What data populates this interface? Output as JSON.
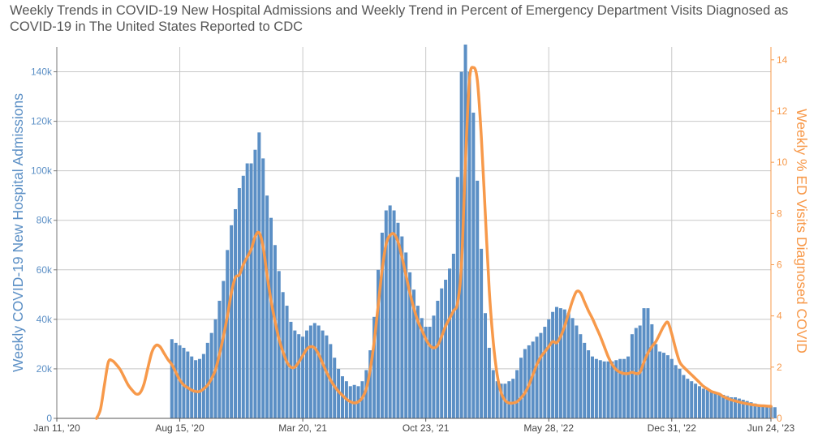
{
  "title": "Weekly Trends in COVID-19 New Hospital Admissions and Weekly Trend in Percent of Emergency Department Visits Diagnosed as COVID-19 in The United States Reported to CDC",
  "colors": {
    "bars": "#5b8fc5",
    "line": "#f7994a",
    "left_axis_text": "#5b8fc5",
    "right_axis_text": "#f7994a",
    "grid": "#c8c8c8",
    "text": "#444444"
  },
  "chart_data": {
    "type": "bar",
    "title": "Weekly Trends in COVID-19 New Hospital Admissions and Weekly Trend in Percent of Emergency Department Visits Diagnosed as COVID-19 in The United States Reported to CDC",
    "ylabel": "Weekly COVID-19 New Hospital Admissions",
    "y2label": "Weekly % ED Visits Diagnosed COVID",
    "xlim": [
      "2020-01-11",
      "2023-06-24"
    ],
    "ylim": [
      0,
      150000
    ],
    "y2lim": [
      0,
      14.5
    ],
    "grid": true,
    "x_ticks": [
      {
        "date": "2020-01-11",
        "label": "Jan 11, '20"
      },
      {
        "date": "2020-08-15",
        "label": "Aug 15, '20"
      },
      {
        "date": "2021-03-20",
        "label": "Mar 20, '21"
      },
      {
        "date": "2021-10-23",
        "label": "Oct 23, '21"
      },
      {
        "date": "2022-05-28",
        "label": "May 28, '22"
      },
      {
        "date": "2022-12-31",
        "label": "Dec 31, '22"
      },
      {
        "date": "2023-06-24",
        "label": "Jun 24, '23"
      }
    ],
    "y_ticks": [
      {
        "value": 0,
        "label": "0"
      },
      {
        "value": 20000,
        "label": "20k"
      },
      {
        "value": 40000,
        "label": "40k"
      },
      {
        "value": 60000,
        "label": "60k"
      },
      {
        "value": 80000,
        "label": "80k"
      },
      {
        "value": 100000,
        "label": "100k"
      },
      {
        "value": 120000,
        "label": "120k"
      },
      {
        "value": 140000,
        "label": "140k"
      }
    ],
    "y2_ticks": [
      {
        "value": 0,
        "label": "0"
      },
      {
        "value": 2,
        "label": "2"
      },
      {
        "value": 4,
        "label": "4"
      },
      {
        "value": 6,
        "label": "6"
      },
      {
        "value": 8,
        "label": "8"
      },
      {
        "value": 10,
        "label": "10"
      },
      {
        "value": 12,
        "label": "12"
      },
      {
        "value": 14,
        "label": "14"
      }
    ],
    "series": [
      {
        "name": "Weekly COVID-19 New Hospital Admissions",
        "axis": "left",
        "start_date": "2020-08-01",
        "values": [
          32000,
          30500,
          29500,
          28500,
          27000,
          25000,
          23500,
          24000,
          26000,
          30500,
          34500,
          40000,
          47500,
          55500,
          68000,
          78000,
          84500,
          93000,
          98000,
          103000,
          103000,
          108500,
          115500,
          105000,
          90000,
          81000,
          70000,
          59500,
          51000,
          45500,
          39000,
          35500,
          34000,
          33000,
          35500,
          37500,
          38500,
          37500,
          35500,
          33500,
          30000,
          24500,
          20000,
          17000,
          15000,
          13000,
          13500,
          13000,
          15000,
          19500,
          27500,
          41000,
          60000,
          75000,
          84000,
          86000,
          84000,
          79000,
          73500,
          67000,
          59000,
          52000,
          45500,
          40500,
          37000,
          37000,
          41500,
          47500,
          52500,
          56000,
          60500,
          66500,
          97500,
          140000,
          151000,
          140000,
          123500,
          96000,
          68500,
          42500,
          28500,
          19500,
          15000,
          14000,
          14000,
          15000,
          16000,
          19500,
          24500,
          28000,
          29500,
          31000,
          33000,
          34500,
          37000,
          40000,
          43000,
          45000,
          44500,
          44000,
          42500,
          40500,
          37500,
          34000,
          30500,
          27500,
          25000,
          24000,
          23500,
          23000,
          23000,
          23000,
          23500,
          24000,
          24000,
          25000,
          34000,
          36500,
          37500,
          44500,
          44500,
          38000,
          30000,
          27000,
          26500,
          25500,
          24000,
          21500,
          20000,
          17500,
          16000,
          15000,
          14000,
          13000,
          12000,
          11500,
          11000,
          10500,
          10000,
          9500,
          9000,
          8500,
          8500,
          8000,
          7500,
          7000,
          6500,
          6000,
          5500,
          5500,
          5000,
          5000,
          4500
        ]
      },
      {
        "name": "Weekly % ED Visits Diagnosed COVID",
        "axis": "right",
        "points": [
          [
            "2020-03-21",
            0.0
          ],
          [
            "2020-03-28",
            0.35
          ],
          [
            "2020-04-04",
            1.3
          ],
          [
            "2020-04-11",
            2.2
          ],
          [
            "2020-04-18",
            2.25
          ],
          [
            "2020-04-25",
            2.1
          ],
          [
            "2020-05-02",
            1.9
          ],
          [
            "2020-05-09",
            1.6
          ],
          [
            "2020-05-16",
            1.3
          ],
          [
            "2020-05-23",
            1.1
          ],
          [
            "2020-05-30",
            0.95
          ],
          [
            "2020-06-06",
            1.0
          ],
          [
            "2020-06-13",
            1.35
          ],
          [
            "2020-06-20",
            2.0
          ],
          [
            "2020-06-27",
            2.6
          ],
          [
            "2020-07-04",
            2.85
          ],
          [
            "2020-07-11",
            2.8
          ],
          [
            "2020-07-18",
            2.55
          ],
          [
            "2020-07-25",
            2.3
          ],
          [
            "2020-08-01",
            2.1
          ],
          [
            "2020-08-08",
            1.8
          ],
          [
            "2020-08-15",
            1.5
          ],
          [
            "2020-08-22",
            1.3
          ],
          [
            "2020-08-29",
            1.2
          ],
          [
            "2020-09-05",
            1.1
          ],
          [
            "2020-09-12",
            1.05
          ],
          [
            "2020-09-19",
            1.05
          ],
          [
            "2020-09-26",
            1.15
          ],
          [
            "2020-10-03",
            1.3
          ],
          [
            "2020-10-10",
            1.55
          ],
          [
            "2020-10-17",
            1.9
          ],
          [
            "2020-10-24",
            2.5
          ],
          [
            "2020-10-31",
            3.2
          ],
          [
            "2020-11-07",
            4.0
          ],
          [
            "2020-11-14",
            4.9
          ],
          [
            "2020-11-21",
            5.5
          ],
          [
            "2020-11-28",
            5.6
          ],
          [
            "2020-12-05",
            6.0
          ],
          [
            "2020-12-12",
            6.3
          ],
          [
            "2020-12-19",
            6.6
          ],
          [
            "2020-12-26",
            7.1
          ],
          [
            "2021-01-02",
            7.25
          ],
          [
            "2021-01-09",
            6.7
          ],
          [
            "2021-01-16",
            5.6
          ],
          [
            "2021-01-23",
            4.6
          ],
          [
            "2021-01-30",
            3.8
          ],
          [
            "2021-02-06",
            3.1
          ],
          [
            "2021-02-13",
            2.6
          ],
          [
            "2021-02-20",
            2.2
          ],
          [
            "2021-02-27",
            2.0
          ],
          [
            "2021-03-06",
            2.0
          ],
          [
            "2021-03-13",
            2.2
          ],
          [
            "2021-03-20",
            2.45
          ],
          [
            "2021-03-27",
            2.7
          ],
          [
            "2021-04-03",
            2.8
          ],
          [
            "2021-04-10",
            2.75
          ],
          [
            "2021-04-17",
            2.5
          ],
          [
            "2021-04-24",
            2.15
          ],
          [
            "2021-05-01",
            1.8
          ],
          [
            "2021-05-08",
            1.5
          ],
          [
            "2021-05-15",
            1.25
          ],
          [
            "2021-05-22",
            1.05
          ],
          [
            "2021-05-29",
            0.9
          ],
          [
            "2021-06-05",
            0.75
          ],
          [
            "2021-06-12",
            0.65
          ],
          [
            "2021-06-19",
            0.6
          ],
          [
            "2021-06-26",
            0.65
          ],
          [
            "2021-07-03",
            0.8
          ],
          [
            "2021-07-10",
            1.15
          ],
          [
            "2021-07-17",
            1.9
          ],
          [
            "2021-07-24",
            3.0
          ],
          [
            "2021-07-31",
            4.4
          ],
          [
            "2021-08-07",
            5.8
          ],
          [
            "2021-08-14",
            6.8
          ],
          [
            "2021-08-21",
            7.15
          ],
          [
            "2021-08-28",
            7.2
          ],
          [
            "2021-09-04",
            6.9
          ],
          [
            "2021-09-11",
            6.3
          ],
          [
            "2021-09-18",
            5.6
          ],
          [
            "2021-09-25",
            4.9
          ],
          [
            "2021-10-02",
            4.3
          ],
          [
            "2021-10-09",
            3.8
          ],
          [
            "2021-10-16",
            3.45
          ],
          [
            "2021-10-23",
            3.1
          ],
          [
            "2021-10-30",
            2.85
          ],
          [
            "2021-11-06",
            2.75
          ],
          [
            "2021-11-13",
            2.85
          ],
          [
            "2021-11-20",
            3.2
          ],
          [
            "2021-11-27",
            3.6
          ],
          [
            "2021-12-04",
            3.9
          ],
          [
            "2021-12-11",
            4.2
          ],
          [
            "2021-12-18",
            4.5
          ],
          [
            "2021-12-25",
            6.0
          ],
          [
            "2022-01-01",
            10.0
          ],
          [
            "2022-01-08",
            13.2
          ],
          [
            "2022-01-15",
            13.7
          ],
          [
            "2022-01-22",
            13.2
          ],
          [
            "2022-01-29",
            11.0
          ],
          [
            "2022-02-05",
            8.0
          ],
          [
            "2022-02-12",
            5.0
          ],
          [
            "2022-02-19",
            3.0
          ],
          [
            "2022-02-26",
            1.7
          ],
          [
            "2022-03-05",
            1.0
          ],
          [
            "2022-03-12",
            0.7
          ],
          [
            "2022-03-19",
            0.6
          ],
          [
            "2022-03-26",
            0.6
          ],
          [
            "2022-04-02",
            0.65
          ],
          [
            "2022-04-09",
            0.8
          ],
          [
            "2022-04-16",
            1.0
          ],
          [
            "2022-04-23",
            1.3
          ],
          [
            "2022-04-30",
            1.7
          ],
          [
            "2022-05-07",
            2.1
          ],
          [
            "2022-05-14",
            2.4
          ],
          [
            "2022-05-21",
            2.6
          ],
          [
            "2022-05-28",
            2.8
          ],
          [
            "2022-06-04",
            3.0
          ],
          [
            "2022-06-11",
            2.95
          ],
          [
            "2022-06-18",
            3.2
          ],
          [
            "2022-06-25",
            3.6
          ],
          [
            "2022-07-02",
            4.1
          ],
          [
            "2022-07-09",
            4.6
          ],
          [
            "2022-07-16",
            4.95
          ],
          [
            "2022-07-23",
            4.9
          ],
          [
            "2022-07-30",
            4.55
          ],
          [
            "2022-08-06",
            4.2
          ],
          [
            "2022-08-13",
            3.9
          ],
          [
            "2022-08-20",
            3.55
          ],
          [
            "2022-08-27",
            3.2
          ],
          [
            "2022-09-03",
            2.8
          ],
          [
            "2022-09-10",
            2.4
          ],
          [
            "2022-09-17",
            2.1
          ],
          [
            "2022-09-24",
            1.9
          ],
          [
            "2022-10-01",
            1.8
          ],
          [
            "2022-10-08",
            1.75
          ],
          [
            "2022-10-15",
            1.75
          ],
          [
            "2022-10-22",
            1.8
          ],
          [
            "2022-10-29",
            1.75
          ],
          [
            "2022-11-05",
            1.8
          ],
          [
            "2022-11-12",
            2.2
          ],
          [
            "2022-11-19",
            2.55
          ],
          [
            "2022-11-26",
            2.8
          ],
          [
            "2022-12-03",
            3.0
          ],
          [
            "2022-12-10",
            3.3
          ],
          [
            "2022-12-17",
            3.6
          ],
          [
            "2022-12-24",
            3.75
          ],
          [
            "2022-12-31",
            3.3
          ],
          [
            "2023-01-07",
            2.7
          ],
          [
            "2023-01-14",
            2.2
          ],
          [
            "2023-01-21",
            2.0
          ],
          [
            "2023-01-28",
            1.85
          ],
          [
            "2023-02-04",
            1.7
          ],
          [
            "2023-02-11",
            1.55
          ],
          [
            "2023-02-18",
            1.4
          ],
          [
            "2023-02-25",
            1.25
          ],
          [
            "2023-03-04",
            1.15
          ],
          [
            "2023-03-11",
            1.05
          ],
          [
            "2023-03-18",
            1.0
          ],
          [
            "2023-03-25",
            0.95
          ],
          [
            "2023-04-01",
            0.85
          ],
          [
            "2023-04-08",
            0.78
          ],
          [
            "2023-04-15",
            0.72
          ],
          [
            "2023-04-22",
            0.68
          ],
          [
            "2023-04-29",
            0.64
          ],
          [
            "2023-05-06",
            0.6
          ],
          [
            "2023-05-13",
            0.57
          ],
          [
            "2023-05-20",
            0.54
          ],
          [
            "2023-05-27",
            0.52
          ],
          [
            "2023-06-03",
            0.5
          ],
          [
            "2023-06-10",
            0.49
          ],
          [
            "2023-06-17",
            0.48
          ],
          [
            "2023-06-24",
            0.47
          ]
        ]
      }
    ]
  }
}
